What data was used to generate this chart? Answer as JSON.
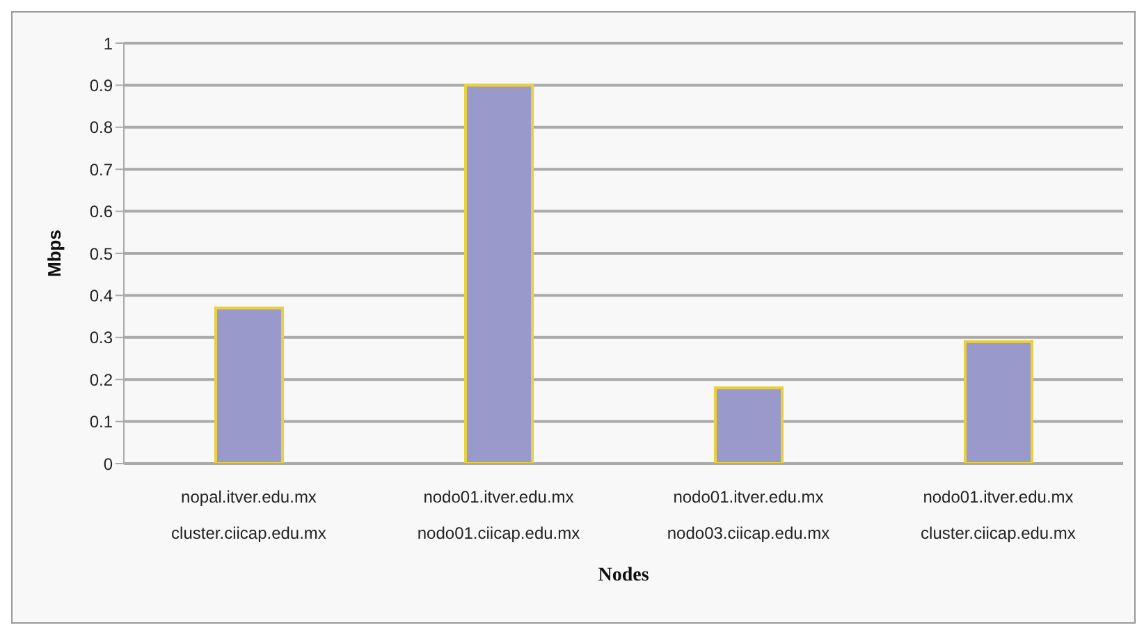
{
  "chart_data": {
    "type": "bar",
    "xlabel": "Nodes",
    "ylabel": "Mbps",
    "categories": [
      "nopal.itver.edu.mx\ncluster.ciicap.edu.mx",
      "nodo01.itver.edu.mx\nnodo01.ciicap.edu.mx",
      "nodo01.itver.edu.mx\nnodo03.ciicap.edu.mx",
      "nodo01.itver.edu.mx\ncluster.ciicap.edu.mx"
    ],
    "values": [
      0.37,
      0.9,
      0.18,
      0.29
    ],
    "color": "#9999cc",
    "ylim": [
      0,
      1
    ],
    "yticks": [
      0,
      0.1,
      0.2,
      0.3,
      0.4,
      0.5,
      0.6,
      0.7,
      0.8,
      0.9,
      1
    ],
    "grid": "y"
  }
}
